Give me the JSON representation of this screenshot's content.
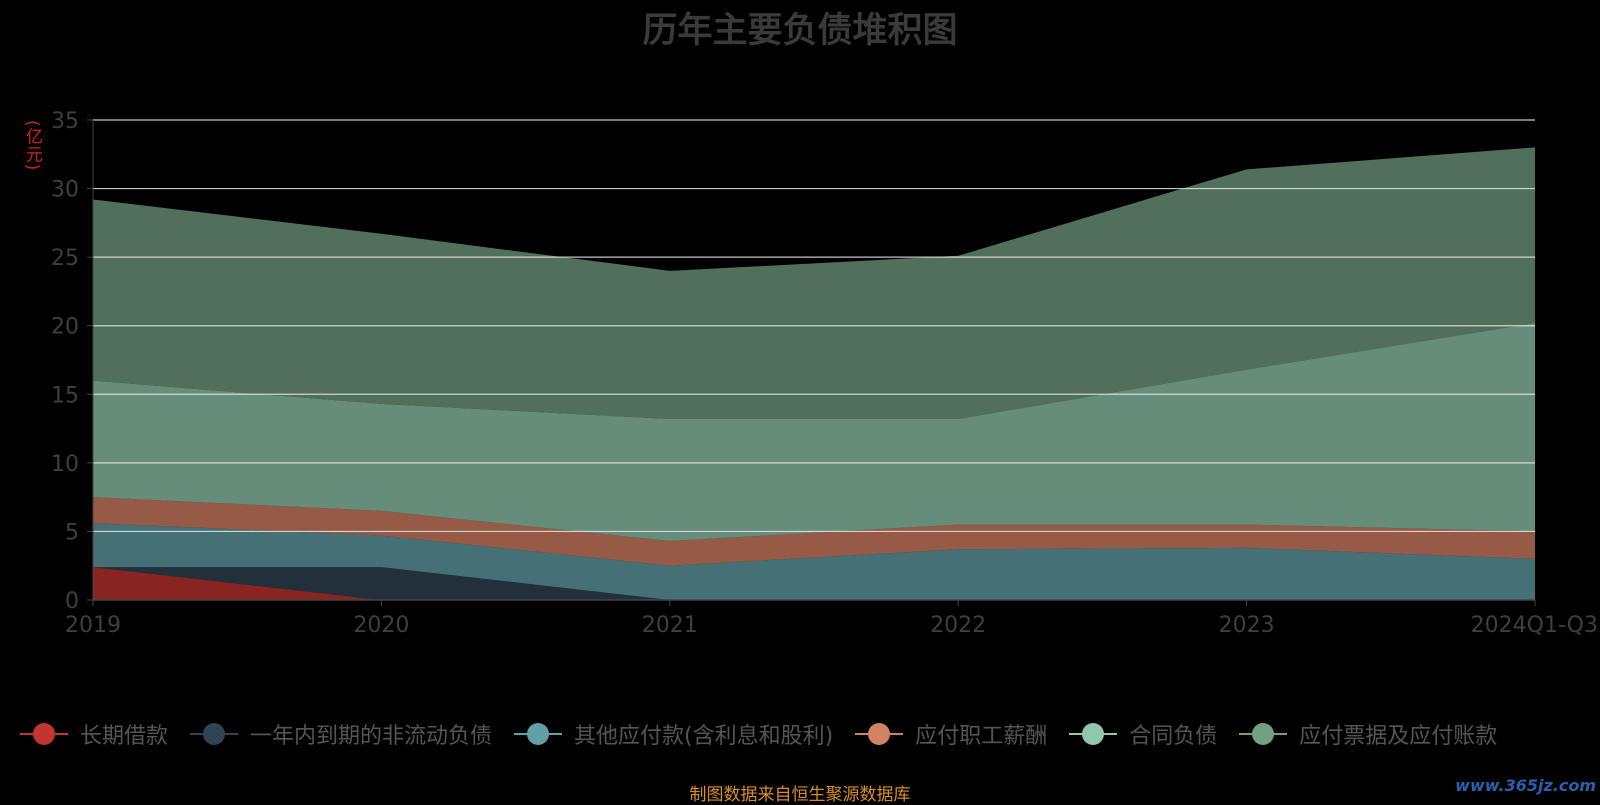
{
  "chart_data": {
    "type": "area",
    "stacked": true,
    "title": "历年主要负债堆积图",
    "ylabel": "(亿元)",
    "categories": [
      "2019",
      "2020",
      "2021",
      "2022",
      "2023",
      "2024Q1-Q3"
    ],
    "ylim": [
      0,
      35
    ],
    "yticks": [
      0,
      5,
      10,
      15,
      20,
      25,
      30,
      35
    ],
    "grid": true,
    "legend_position": "bottom",
    "series": [
      {
        "name": "长期借款",
        "color": "#c23531",
        "values": [
          2.4,
          0,
          0,
          0,
          0,
          0
        ]
      },
      {
        "name": "一年内到期的非流动负债",
        "color": "#2f4554",
        "values": [
          0,
          2.4,
          0,
          0,
          0,
          0
        ]
      },
      {
        "name": "其他应付款(含利息和股利)",
        "color": "#61a0a8",
        "values": [
          3.2,
          2.3,
          2.5,
          3.7,
          3.8,
          3.0
        ]
      },
      {
        "name": "应付职工薪酬",
        "color": "#d48265",
        "values": [
          1.9,
          1.8,
          1.8,
          1.8,
          1.7,
          2.0
        ]
      },
      {
        "name": "合同负债",
        "color": "#91c7ae",
        "values": [
          8.5,
          7.8,
          8.9,
          7.7,
          11.3,
          15.2
        ]
      },
      {
        "name": "应付票据及应付账款",
        "color": "#749f83",
        "values": [
          13.2,
          12.4,
          10.8,
          11.9,
          14.6,
          12.8
        ]
      }
    ]
  },
  "footer": {
    "source": "制图数据来自恒生聚源数据库",
    "watermark": "www.365jz.com"
  }
}
